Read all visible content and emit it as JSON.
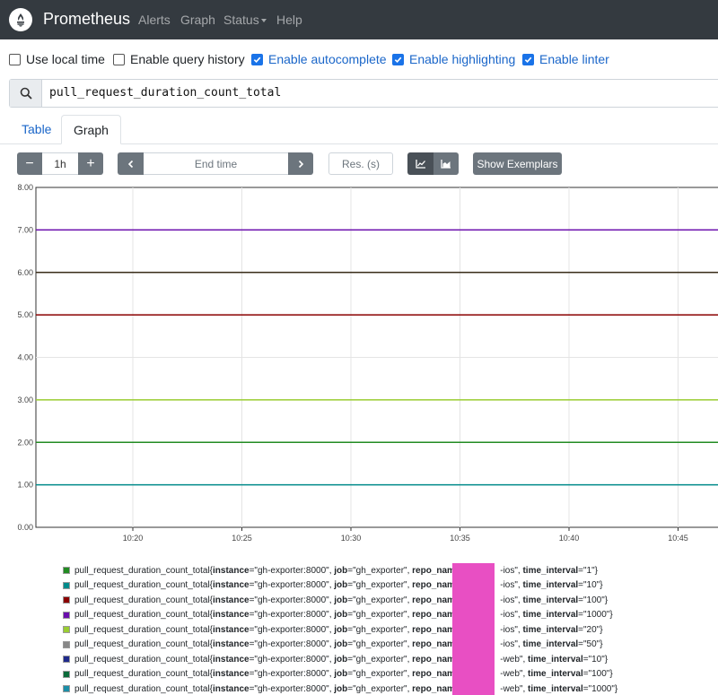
{
  "navbar": {
    "brand": "Prometheus",
    "links": [
      "Alerts",
      "Graph",
      "Status",
      "Help"
    ]
  },
  "options": [
    {
      "label": "Use local time",
      "checked": false
    },
    {
      "label": "Enable query history",
      "checked": false
    },
    {
      "label": "Enable autocomplete",
      "checked": true
    },
    {
      "label": "Enable highlighting",
      "checked": true
    },
    {
      "label": "Enable linter",
      "checked": true
    }
  ],
  "expression": {
    "value": "pull_request_duration_count_total"
  },
  "tabs": [
    "Table",
    "Graph"
  ],
  "controls": {
    "minus": "−",
    "range": "1h",
    "plus": "+",
    "end_time_placeholder": "End time",
    "resolution_placeholder": "Res. (s)",
    "exemplars_label": "Show Exemplars"
  },
  "chart_data": {
    "type": "line",
    "x": [
      "10:20",
      "10:25",
      "10:30",
      "10:35",
      "10:40",
      "10:45"
    ],
    "ylim": [
      0,
      8
    ],
    "yticks": [
      "0.00",
      "1.00",
      "2.00",
      "3.00",
      "4.00",
      "5.00",
      "6.00",
      "7.00",
      "8.00"
    ],
    "series": [
      {
        "color": "#228b22",
        "values": [
          2,
          2,
          2,
          2,
          2,
          2
        ]
      },
      {
        "color": "#008b8b",
        "values": [
          1,
          1,
          1,
          1,
          1,
          1
        ]
      },
      {
        "color": "#8b0000",
        "values": [
          5,
          5,
          5,
          5,
          5,
          5
        ]
      },
      {
        "color": "#6a0dad",
        "values": [
          7,
          7,
          7,
          7,
          7,
          7
        ]
      },
      {
        "color": "#9acd32",
        "values": [
          3,
          3,
          3,
          3,
          3,
          3
        ]
      },
      {
        "color": "#3a2d1a",
        "values": [
          6,
          6,
          6,
          6,
          6,
          6
        ]
      }
    ],
    "grid": true
  },
  "legend": [
    {
      "color": "#228b22",
      "metric": "pull_request_duration_count_total{",
      "instance": "\"gh-exporter:8000\"",
      "job": "\"gh_exporter\"",
      "repo_suffix": "-ios\"",
      "interval": "\"1\"}"
    },
    {
      "color": "#008b8b",
      "metric": "pull_request_duration_count_total{",
      "instance": "\"gh-exporter:8000\"",
      "job": "\"gh_exporter\"",
      "repo_suffix": "-ios\"",
      "interval": "\"10\"}"
    },
    {
      "color": "#8b0000",
      "metric": "pull_request_duration_count_total{",
      "instance": "\"gh-exporter:8000\"",
      "job": "\"gh_exporter\"",
      "repo_suffix": "-ios\"",
      "interval": "\"100\"}"
    },
    {
      "color": "#6a0dad",
      "metric": "pull_request_duration_count_total{",
      "instance": "\"gh-exporter:8000\"",
      "job": "\"gh_exporter\"",
      "repo_suffix": "-ios\"",
      "interval": "\"1000\"}"
    },
    {
      "color": "#9acd32",
      "metric": "pull_request_duration_count_total{",
      "instance": "\"gh-exporter:8000\"",
      "job": "\"gh_exporter\"",
      "repo_suffix": "-ios\"",
      "interval": "\"20\"}"
    },
    {
      "color": "#888888",
      "metric": "pull_request_duration_count_total{",
      "instance": "\"gh-exporter:8000\"",
      "job": "\"gh_exporter\"",
      "repo_suffix": "-ios\"",
      "interval": "\"50\"}"
    },
    {
      "color": "#1f2a8b",
      "metric": "pull_request_duration_count_total{",
      "instance": "\"gh-exporter:8000\"",
      "job": "\"gh_exporter\"",
      "repo_suffix": "-web\"",
      "interval": "\"10\"}"
    },
    {
      "color": "#0b6b3a",
      "metric": "pull_request_duration_count_total{",
      "instance": "\"gh-exporter:8000\"",
      "job": "\"gh_exporter\"",
      "repo_suffix": "-web\"",
      "interval": "\"100\"}"
    },
    {
      "color": "#1b8fa8",
      "metric": "pull_request_duration_count_total{",
      "instance": "\"gh-exporter:8000\"",
      "job": "\"gh_exporter\"",
      "repo_suffix": "-web\"",
      "interval": "\"1000\"}"
    }
  ],
  "legend_keys": {
    "instance": "instance",
    "job": "job",
    "repo": "repo_name",
    "interval": "time_interval"
  }
}
